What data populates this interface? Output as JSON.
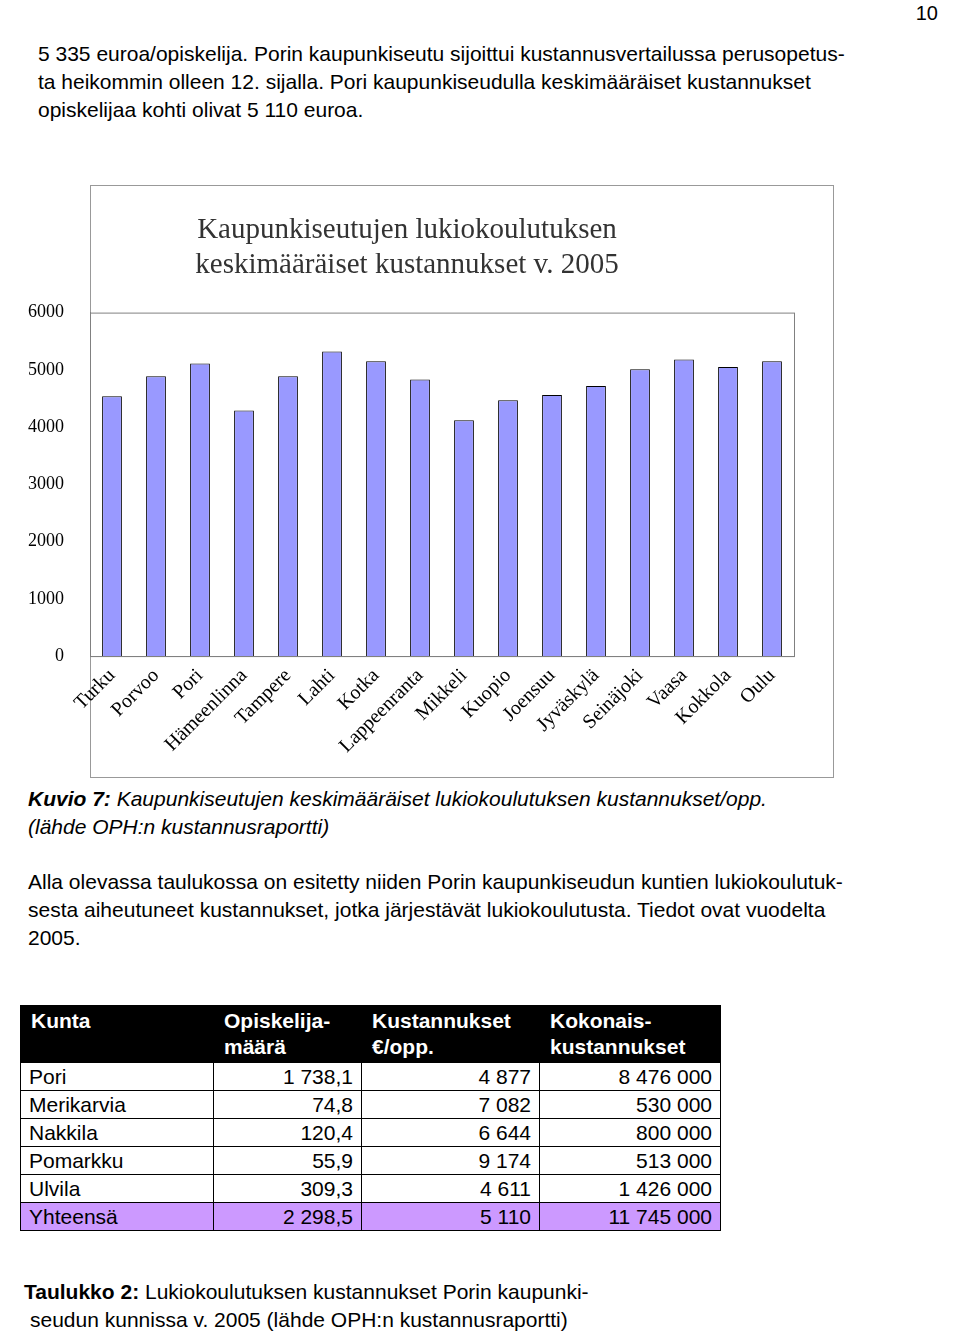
{
  "page_number": "10",
  "intro_lines": [
    "5 335 euroa/opiskelija. Porin kaupunkiseutu sijoittui kustannusvertailussa perusopetus-",
    "ta heikommin olleen 12. sijalla. Pori kaupunkiseudulla keskimääräiset kustannukset",
    "opiskelijaa kohti olivat 5 110 euroa."
  ],
  "chart_data": {
    "type": "bar",
    "title": [
      "Kaupunkiseutujen lukiokoulutuksen",
      "keskimääräiset kustannukset v. 2005"
    ],
    "categories": [
      "Turku",
      "Porvoo",
      "Pori",
      "Hämeenlinna",
      "Tampere",
      "Lahti",
      "Kotka",
      "Lappeenranta",
      "Mikkeli",
      "Kuopio",
      "Joensuu",
      "Jyväskylä",
      "Seinäjoki",
      "Vaasa",
      "Kokkola",
      "Oulu"
    ],
    "values": [
      4540,
      4890,
      5110,
      4290,
      4890,
      5320,
      5150,
      4830,
      4120,
      4470,
      4560,
      4720,
      5010,
      5180,
      5050,
      5150
    ],
    "color": "#9999ff",
    "ylim": [
      0,
      6000
    ],
    "yticks": [
      0,
      1000,
      2000,
      3000,
      4000,
      5000,
      6000
    ],
    "grid": false
  },
  "figure_caption": {
    "label": "Kuvio 7:",
    "text": " Kaupunkiseutujen keskimääräiset lukiokoulutuksen kustannukset/opp.",
    "source": "(lähde OPH:n kustannusraportti)"
  },
  "paragraph_lines": [
    "Alla olevassa taulukossa on esitetty niiden Porin kaupunkiseudun kuntien lukiokoulutuk-",
    "sesta aiheutuneet kustannukset, jotka järjestävät lukiokoulutusta. Tiedot ovat vuodelta",
    "2005."
  ],
  "table": {
    "header": [
      [
        "Kunta"
      ],
      [
        "Opiskelija-",
        "määrä"
      ],
      [
        "Kustannukset",
        "€/opp."
      ],
      [
        "Kokonais-",
        "kustannukset"
      ]
    ],
    "rows": [
      [
        "Pori",
        "1 738,1",
        "4 877",
        "8 476 000"
      ],
      [
        "Merikarvia",
        "74,8",
        "7 082",
        "530 000"
      ],
      [
        "Nakkila",
        "120,4",
        "6 644",
        "800 000"
      ],
      [
        "Pomarkku",
        "55,9",
        "9 174",
        "513 000"
      ],
      [
        "Ulvila",
        "309,3",
        "4 611",
        "1 426 000"
      ]
    ],
    "total": [
      "Yhteensä",
      "2 298,5",
      "5 110",
      "11 745 000"
    ]
  },
  "table_caption": {
    "label": "Taulukko 2:",
    "lines": [
      " Lukiokoulutuksen kustannukset Porin kaupunki-",
      "seudun kunnissa v. 2005 (lähde OPH:n kustannusraportti)"
    ]
  }
}
